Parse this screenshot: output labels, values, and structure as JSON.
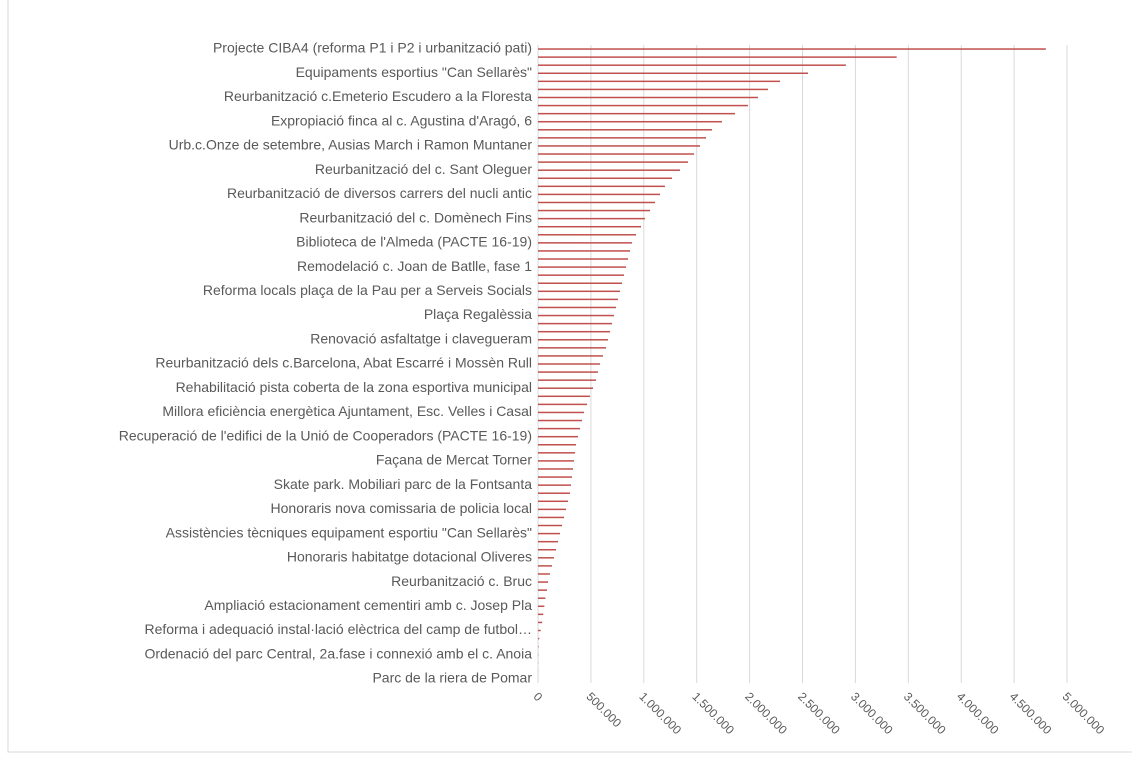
{
  "chart_data": {
    "type": "barh",
    "color": "#c0504d",
    "grid": true,
    "categories": [
      "Projecte CIBA4 (reforma P1 i P2 i urbanització pati)",
      null,
      null,
      "Equipaments esportius \"Can Sellarès\"",
      null,
      null,
      "Reurbanització c.Emeterio Escudero a la Floresta",
      null,
      null,
      "Expropiació finca al c. Agustina d'Aragó, 6",
      null,
      null,
      "Urb.c.Onze de setembre, Ausias March i Ramon Muntaner",
      null,
      null,
      "Reurbanització del c. Sant Oleguer",
      null,
      null,
      "Reurbanització de diversos carrers del nucli antic",
      null,
      null,
      "Reurbanització del c. Domènech Fins",
      null,
      null,
      "Biblioteca de l'Almeda (PACTE 16-19)",
      null,
      null,
      "Remodelació c. Joan de Batlle, fase 1",
      null,
      null,
      "Reforma locals plaça de la Pau per a Serveis Socials",
      null,
      null,
      "Plaça Regalèssia",
      null,
      null,
      "Renovació asfaltatge i clavegueram",
      null,
      null,
      "Reurbanització dels c.Barcelona, Abat Escarré i Mossèn Rull",
      null,
      null,
      "Rehabilitació pista coberta de la zona esportiva municipal",
      null,
      null,
      "Millora eficiència energètica Ajuntament, Esc. Velles i  Casal",
      null,
      null,
      "Recuperació de l'edifici de la Unió de Cooperadors (PACTE 16-19)",
      null,
      null,
      "Façana de Mercat Torner",
      null,
      null,
      "Skate park. Mobiliari parc de la Fontsanta",
      null,
      null,
      "Honoraris nova comissaria de policia local",
      null,
      null,
      "Assistències tècniques equipament esportiu \"Can Sellarès\"",
      null,
      null,
      "Honoraris habitatge dotacional Oliveres",
      null,
      null,
      "Reurbanització c. Bruc",
      null,
      null,
      "Ampliació estacionament cementiri amb c. Josep Pla",
      null,
      null,
      "Reforma i adequació instal·lació elèctrica del camp de futbol…",
      null,
      null,
      "Ordenació del parc Central, 2a.fase i connexió amb el c. Anoia",
      null,
      null,
      "Parc de la riera de Pomar"
    ],
    "values": [
      4800000,
      3390000,
      2910000,
      2552000,
      2287000,
      2174000,
      2079000,
      1985000,
      1862000,
      1739000,
      1645000,
      1588000,
      1531000,
      1475000,
      1418000,
      1342000,
      1267000,
      1200000,
      1153000,
      1106000,
      1059000,
      1011000,
      974000,
      926000,
      888000,
      870000,
      851000,
      832000,
      813000,
      794000,
      775000,
      756000,
      737000,
      718000,
      699000,
      681000,
      662000,
      643000,
      614000,
      586000,
      567000,
      548000,
      520000,
      491000,
      463000,
      435000,
      416000,
      397000,
      378000,
      359000,
      350000,
      340000,
      331000,
      321000,
      312000,
      302000,
      284000,
      265000,
      246000,
      227000,
      208000,
      189000,
      170000,
      151000,
      132000,
      113000,
      95000,
      85000,
      70000,
      60000,
      50000,
      40000,
      25000,
      12000,
      6000,
      3000,
      2000,
      1000,
      500
    ],
    "xlim": [
      0,
      5000000
    ],
    "xticks": [
      0,
      {
        "value": 500000,
        "label": "500.000"
      },
      {
        "value": 1000000,
        "label": "1.000.000"
      },
      {
        "value": 1500000,
        "label": "1.500.000"
      },
      {
        "value": 2000000,
        "label": "2.000.000"
      },
      {
        "value": 2500000,
        "label": "2.500.000"
      },
      {
        "value": 3000000,
        "label": "3.000.000"
      },
      {
        "value": 3500000,
        "label": "3.500.000"
      },
      {
        "value": 4000000,
        "label": "4.000.000"
      },
      {
        "value": 4500000,
        "label": "4.500.000"
      },
      {
        "value": 5000000,
        "label": "5.000.000"
      }
    ]
  }
}
